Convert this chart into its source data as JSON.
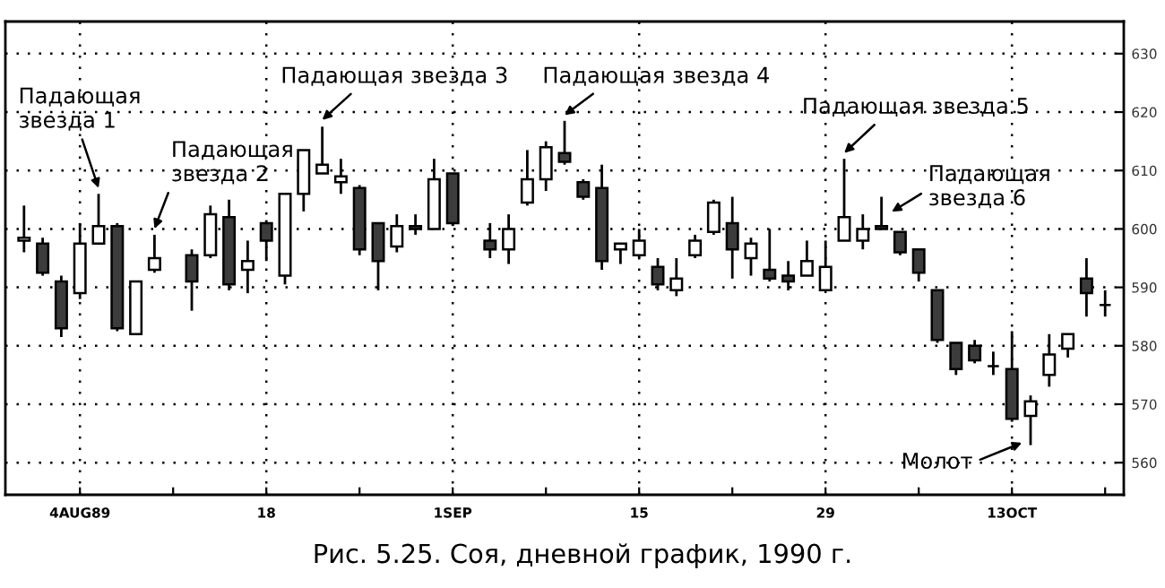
{
  "chart_data": {
    "type": "candlestick",
    "title": "Рис. 5.25. Соя, дневной график, 1990 г.",
    "categories": [
      null,
      null,
      null,
      "4AUG89",
      null,
      null,
      null,
      null,
      null,
      null,
      null,
      null,
      null,
      "18",
      null,
      null,
      null,
      null,
      null,
      null,
      null,
      null,
      null,
      "1SEP",
      null,
      null,
      null,
      null,
      null,
      null,
      null,
      null,
      null,
      "15",
      null,
      null,
      null,
      null,
      null,
      null,
      null,
      null,
      null,
      "29",
      null,
      null,
      null,
      null,
      null,
      null,
      null,
      null,
      null,
      "13OCT",
      null,
      null,
      null,
      null,
      null
    ],
    "ohlc": [
      [
        598,
        604,
        596,
        598.5
      ],
      [
        597.5,
        598.5,
        592,
        592.5
      ],
      [
        591,
        592,
        581.5,
        583
      ],
      [
        589,
        601,
        588,
        597.5
      ],
      [
        597.5,
        606,
        597.5,
        600.5
      ],
      [
        600.5,
        601,
        582.5,
        583
      ],
      [
        582,
        591,
        582,
        591
      ],
      [
        593,
        599,
        592.5,
        595
      ],
      null,
      [
        595.5,
        596.5,
        586,
        591
      ],
      [
        595.5,
        604,
        595,
        602.5
      ],
      [
        602,
        605,
        589.5,
        590.5
      ],
      [
        593,
        598,
        589,
        594.5
      ],
      [
        601,
        601.5,
        594.5,
        598
      ],
      [
        592,
        606,
        590.5,
        606
      ],
      [
        606,
        613.5,
        603,
        613.5
      ],
      [
        609.5,
        617.5,
        609.5,
        611
      ],
      [
        608,
        612,
        606,
        609
      ],
      [
        607,
        607.5,
        595.5,
        596.5
      ],
      [
        601,
        601,
        589.5,
        594.5
      ],
      [
        597,
        602.5,
        596,
        600.5
      ],
      [
        600.5,
        602.5,
        599,
        600
      ],
      [
        600,
        612,
        600,
        608.5
      ],
      [
        609.5,
        609.5,
        600.5,
        601
      ],
      null,
      [
        598,
        601,
        595,
        596.5
      ],
      [
        596.5,
        602.5,
        594,
        600
      ],
      [
        604.5,
        613.5,
        604,
        608.5
      ],
      [
        608.5,
        615,
        606.5,
        614
      ],
      [
        613,
        618.5,
        611,
        611.5
      ],
      [
        608,
        608.5,
        605,
        605.5
      ],
      [
        607,
        611,
        593,
        594.5
      ],
      [
        596.5,
        597.5,
        594,
        597.5
      ],
      [
        595.5,
        600,
        595,
        598
      ],
      [
        593.5,
        595,
        589.5,
        590.5
      ],
      [
        589.5,
        595,
        588.5,
        591.5
      ],
      [
        595.5,
        599,
        595,
        598
      ],
      [
        599.5,
        605,
        599,
        604.5
      ],
      [
        601,
        605.5,
        591.5,
        596.5
      ],
      [
        595,
        598.5,
        592,
        597.5
      ],
      [
        593,
        600,
        591,
        591.5
      ],
      [
        592,
        594.5,
        589.5,
        591
      ],
      [
        592,
        598,
        592,
        594.5
      ],
      [
        589.5,
        598,
        589.5,
        593.5
      ],
      [
        598,
        612,
        598,
        602
      ],
      [
        598,
        602.5,
        596.5,
        600
      ],
      [
        600.5,
        605.5,
        600,
        600
      ],
      [
        599.5,
        599.5,
        595.5,
        596
      ],
      [
        596.5,
        596.5,
        591,
        592.5
      ],
      [
        589.5,
        589.5,
        580.5,
        581
      ],
      [
        580.5,
        580.5,
        575,
        576
      ],
      [
        580,
        581,
        577,
        577.5
      ],
      [
        576.5,
        579,
        575,
        576.5
      ],
      [
        576,
        582.5,
        567,
        567.5
      ],
      [
        568,
        571.5,
        563,
        570.5
      ],
      [
        575,
        582,
        573,
        578.5
      ],
      [
        579.5,
        582,
        578,
        582
      ],
      [
        591.5,
        595,
        585,
        589
      ],
      [
        587,
        589.5,
        585,
        587
      ]
    ],
    "colors": [
      "#ffffff",
      "#3c3c3c",
      "#3c3c3c",
      "#ffffff",
      "#ffffff",
      "#3c3c3c",
      "#ffffff",
      "#ffffff",
      null,
      "#3c3c3c",
      "#ffffff",
      "#3c3c3c",
      "#ffffff",
      "#3c3c3c",
      "#ffffff",
      "#ffffff",
      "#ffffff",
      "#ffffff",
      "#3c3c3c",
      "#3c3c3c",
      "#ffffff",
      "#3c3c3c",
      "#ffffff",
      "#3c3c3c",
      null,
      "#3c3c3c",
      "#ffffff",
      "#ffffff",
      "#ffffff",
      "#3c3c3c",
      "#3c3c3c",
      "#3c3c3c",
      "#ffffff",
      "#ffffff",
      "#3c3c3c",
      "#ffffff",
      "#ffffff",
      "#ffffff",
      "#3c3c3c",
      "#ffffff",
      "#3c3c3c",
      "#3c3c3c",
      "#ffffff",
      "#ffffff",
      "#ffffff",
      "#ffffff",
      "#3c3c3c",
      "#3c3c3c",
      "#3c3c3c",
      "#3c3c3c",
      "#3c3c3c",
      "#3c3c3c",
      "#000000",
      "#3c3c3c",
      "#ffffff",
      "#ffffff",
      "#ffffff",
      "#3c3c3c",
      "#000000"
    ],
    "ylim": [
      554.5,
      635.5
    ],
    "yticks": [
      560,
      570,
      580,
      590,
      600,
      610,
      620,
      630
    ],
    "grid": true,
    "annotations": [
      "Падающая\nзвезда 1",
      "Падающая\nзвезда 2",
      "Падающая звезда 3",
      "Падающая звезда 4",
      "Падающая звезда 5",
      "Падающая\nзвезда 6",
      "Молот"
    ]
  }
}
